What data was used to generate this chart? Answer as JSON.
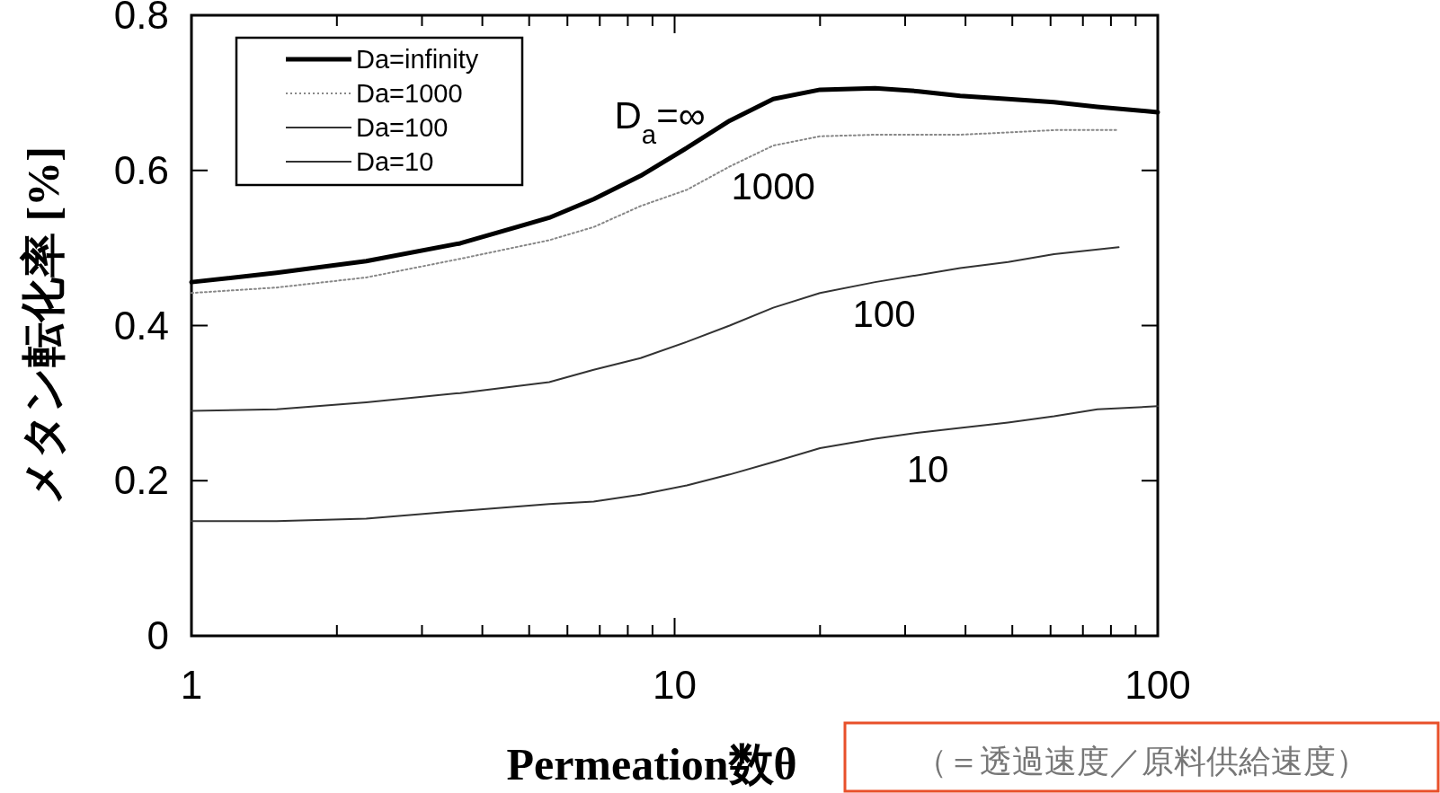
{
  "chart_data": {
    "type": "line",
    "xlabel": "Permeation数θ",
    "ylabel": "メタン転化率 [%]",
    "log": "x",
    "xlim": [
      1,
      100
    ],
    "ylim": [
      0,
      0.8
    ],
    "xticks": [
      1,
      {
        "value": 2,
        "label": null
      },
      {
        "value": 3,
        "label": null
      },
      {
        "value": 4,
        "label": null
      },
      {
        "value": 5,
        "label": null
      },
      {
        "value": 6,
        "label": null
      },
      {
        "value": 7,
        "label": null
      },
      {
        "value": 8,
        "label": null
      },
      {
        "value": 9,
        "label": null
      },
      10,
      {
        "value": 20,
        "label": null
      },
      {
        "value": 30,
        "label": null
      },
      {
        "value": 40,
        "label": null
      },
      {
        "value": 50,
        "label": null
      },
      {
        "value": 60,
        "label": null
      },
      {
        "value": 70,
        "label": null
      },
      {
        "value": 80,
        "label": null
      },
      {
        "value": 90,
        "label": null
      },
      100
    ],
    "yticks": [
      0,
      0.2,
      0.4,
      0.6,
      0.8
    ],
    "grid": false,
    "legend": "top left",
    "marker": "none",
    "x": [
      1,
      1.5,
      2.3,
      3.6,
      5.5,
      6.8,
      8.5,
      10.6,
      13,
      16,
      20,
      26,
      32,
      39,
      49,
      61,
      75,
      100
    ],
    "series": [
      {
        "name": "Da=infinity",
        "color": "#000000",
        "line_style": "solid",
        "values": [
          0.456,
          0.468,
          0.483,
          0.506,
          0.539,
          0.563,
          0.593,
          0.629,
          0.664,
          0.692,
          0.704,
          0.706,
          0.702,
          0.696,
          0.692,
          0.688,
          0.682,
          0.675
        ]
      },
      {
        "name": "Da=1000",
        "color": "#888888",
        "line_style": "dotted",
        "x": [
          1,
          1.5,
          2.3,
          3.6,
          5.5,
          6.8,
          8.5,
          10.6,
          13,
          16,
          20,
          26,
          39,
          49,
          61,
          83
        ],
        "values": [
          0.442,
          0.449,
          0.462,
          0.486,
          0.51,
          0.527,
          0.554,
          0.575,
          0.605,
          0.632,
          0.644,
          0.646,
          0.646,
          0.649,
          0.652,
          0.652
        ]
      },
      {
        "name": "Da=100",
        "color": "#333333",
        "line_style": "solid",
        "x": [
          1,
          1.5,
          2.3,
          3.6,
          5.5,
          6.8,
          8.5,
          10.6,
          13,
          16,
          20,
          26,
          39,
          49,
          61,
          83
        ],
        "values": [
          0.29,
          0.292,
          0.301,
          0.313,
          0.327,
          0.343,
          0.358,
          0.379,
          0.4,
          0.423,
          0.442,
          0.456,
          0.474,
          0.482,
          0.492,
          0.501
        ]
      },
      {
        "name": "Da=10",
        "color": "#333333",
        "line_style": "solid",
        "values": [
          0.148,
          0.148,
          0.151,
          0.161,
          0.17,
          0.173,
          0.182,
          0.194,
          0.208,
          0.224,
          0.242,
          0.254,
          0.262,
          0.268,
          0.275,
          0.283,
          0.292,
          0.296
        ]
      }
    ],
    "annotations": [
      "D$_{a}$=∞",
      "1000",
      "100",
      "10",
      "（＝透過速度／原料供給速度）"
    ]
  }
}
